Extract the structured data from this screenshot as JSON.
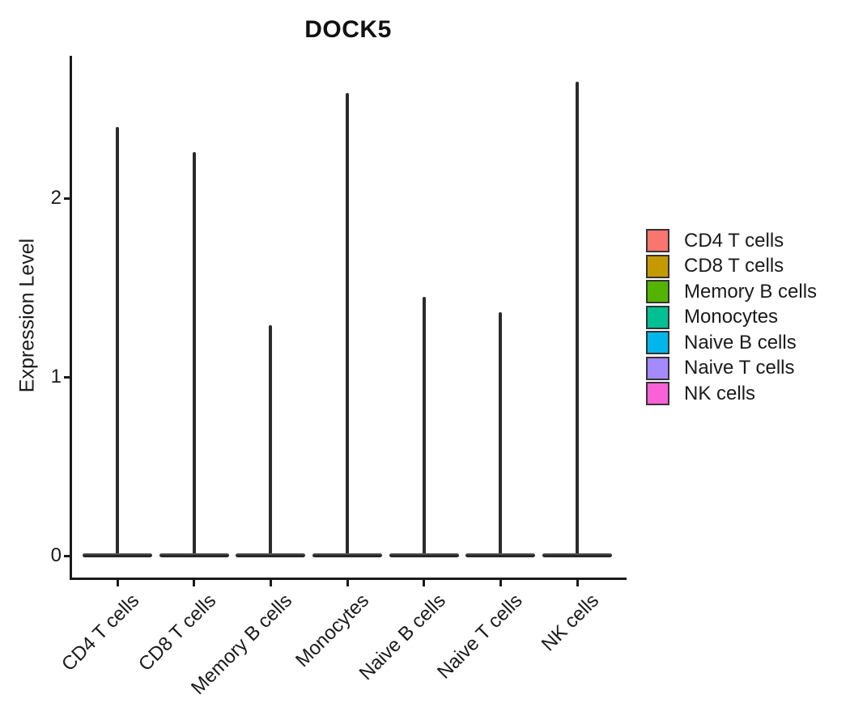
{
  "title": "DOCK5",
  "chart_data": {
    "type": "violin",
    "title": "DOCK5",
    "ylabel": "Expression Level",
    "xlabel": "",
    "categories": [
      "CD4 T cells",
      "CD8 T cells",
      "Memory B cells",
      "Monocytes",
      "Naive B cells",
      "Naive T cells",
      "NK cells"
    ],
    "series": [
      {
        "name": "CD4 T cells",
        "color": "#F8766D",
        "max_expression": 2.4,
        "density_peak_at": 0
      },
      {
        "name": "CD8 T cells",
        "color": "#C49A00",
        "max_expression": 2.26,
        "density_peak_at": 0
      },
      {
        "name": "Memory B cells",
        "color": "#53B400",
        "max_expression": 1.29,
        "density_peak_at": 0
      },
      {
        "name": "Monocytes",
        "color": "#00C094",
        "max_expression": 2.59,
        "density_peak_at": 0
      },
      {
        "name": "Naive B cells",
        "color": "#00B6EB",
        "max_expression": 1.45,
        "density_peak_at": 0
      },
      {
        "name": "Naive T cells",
        "color": "#A58AFF",
        "max_expression": 1.36,
        "density_peak_at": 0
      },
      {
        "name": "NK cells",
        "color": "#FB61D7",
        "max_expression": 2.65,
        "density_peak_at": 0
      }
    ],
    "y_ticks": [
      0,
      1,
      2
    ],
    "ylim": [
      -0.13,
      2.78
    ],
    "grid": false,
    "legend_position": "right",
    "violin_outline_color": "#2b2b2b"
  },
  "legend_title": ""
}
